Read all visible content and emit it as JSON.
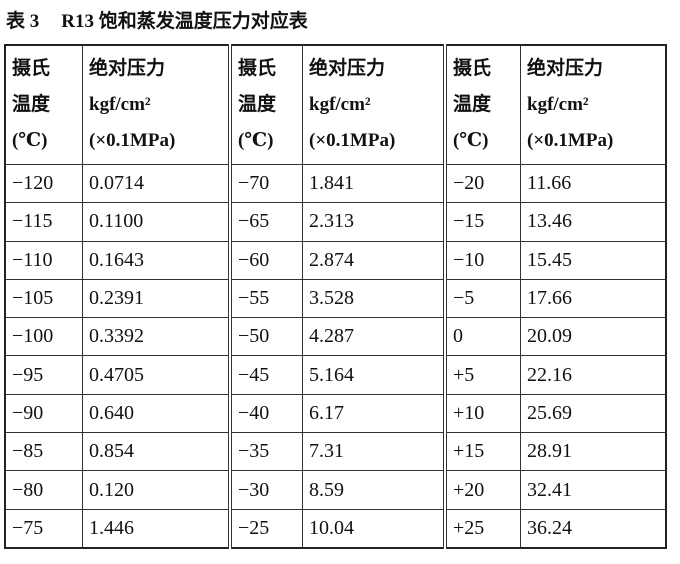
{
  "title": {
    "label": "表 3",
    "text": "R13 饱和蒸发温度压力对应表"
  },
  "table": {
    "header": [
      [
        "摄氏",
        "温度",
        "(℃)"
      ],
      [
        "绝对压力",
        "kgf/cm²",
        "(×0.1MPa)"
      ],
      [
        "摄氏",
        "温度",
        "(℃)"
      ],
      [
        "绝对压力",
        "kgf/cm²",
        "(×0.1MPa)"
      ],
      [
        "摄氏",
        "温度",
        "(℃)"
      ],
      [
        "绝对压力",
        "kgf/cm²",
        "(×0.1MPa)"
      ]
    ],
    "rows": [
      [
        "−120",
        "0.0714",
        "−70",
        "1.841",
        "−20",
        "11.66"
      ],
      [
        "−115",
        "0.1100",
        "−65",
        "2.313",
        "−15",
        "13.46"
      ],
      [
        "−110",
        "0.1643",
        "−60",
        "2.874",
        "−10",
        "15.45"
      ],
      [
        "−105",
        "0.2391",
        "−55",
        "3.528",
        "−5",
        "17.66"
      ],
      [
        "−100",
        "0.3392",
        "−50",
        "4.287",
        "0",
        "20.09"
      ],
      [
        "−95",
        "0.4705",
        "−45",
        "5.164",
        "+5",
        "22.16"
      ],
      [
        "−90",
        "0.640",
        "−40",
        "6.17",
        "+10",
        "25.69"
      ],
      [
        "−85",
        "0.854",
        "−35",
        "7.31",
        "+15",
        "28.91"
      ],
      [
        "−80",
        "0.120",
        "−30",
        "8.59",
        "+20",
        "32.41"
      ],
      [
        "−75",
        "1.446",
        "−25",
        "10.04",
        "+25",
        "36.24"
      ]
    ]
  }
}
